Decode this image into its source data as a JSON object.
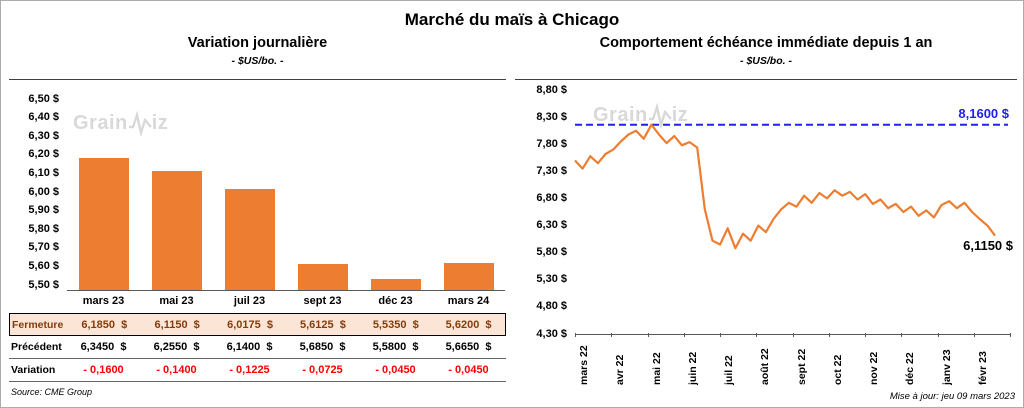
{
  "page": {
    "title": "Marché du maïs à Chicago",
    "source": "Source: CME Group",
    "updated": "Mise à jour: jeu 09 mars 2023",
    "watermark_prefix": "Grain",
    "watermark_suffix": "iz"
  },
  "colors": {
    "series_orange": "#ED7D31",
    "ref_blue": "#2020EE",
    "negative_red": "#FF0000",
    "highlight_bg": "#FBE5D6",
    "highlight_text": "#843C0C",
    "axis_line": "#404040",
    "watermark_gray": "#D9D9D9"
  },
  "chart_data": [
    {
      "type": "bar",
      "title": "Variation journalière",
      "subtitle": "- $US/bo. -",
      "categories": [
        "mars 23",
        "mai 23",
        "juil 23",
        "sept 23",
        "déc 23",
        "mars 24"
      ],
      "values": [
        6.185,
        6.115,
        6.0175,
        5.6125,
        5.535,
        5.62
      ],
      "bar_color": "#ED7D31",
      "ylim": [
        5.47,
        6.5
      ],
      "yticks": [
        {
          "value": 6.5,
          "label": "6,50 $"
        },
        {
          "value": 6.4,
          "label": "6,40 $"
        },
        {
          "value": 6.3,
          "label": "6,30 $"
        },
        {
          "value": 6.2,
          "label": "6,20 $"
        },
        {
          "value": 6.1,
          "label": "6,10 $"
        },
        {
          "value": 6.0,
          "label": "6,00 $"
        },
        {
          "value": 5.9,
          "label": "5,90 $"
        },
        {
          "value": 5.8,
          "label": "5,80 $"
        },
        {
          "value": 5.7,
          "label": "5,70 $"
        },
        {
          "value": 5.6,
          "label": "5,60 $"
        },
        {
          "value": 5.5,
          "label": "5,50 $"
        }
      ],
      "table": {
        "rows": [
          {
            "label": "Fermeture",
            "style": "highlight",
            "values": [
              "6,1850  $",
              "6,1150  $",
              "6,0175  $",
              "5,6125  $",
              "5,5350  $",
              "5,6200  $"
            ]
          },
          {
            "label": "Précédent",
            "style": "normal",
            "values": [
              "6,3450  $",
              "6,2550  $",
              "6,1400  $",
              "5,6850  $",
              "5,5800  $",
              "5,6650  $"
            ]
          },
          {
            "label": "Variation",
            "style": "negative",
            "values": [
              "- 0,1600",
              "- 0,1400",
              "- 0,1225",
              "- 0,0725",
              "- 0,0450",
              "- 0,0450"
            ]
          }
        ]
      }
    },
    {
      "type": "line",
      "title": "Comportement échéance immédiate depuis 1 an",
      "subtitle": "- $US/bo. -",
      "x_labels": [
        "mars 22",
        "avr 22",
        "mai 22",
        "juin 22",
        "juil 22",
        "août 22",
        "sept 22",
        "oct 22",
        "nov 22",
        "déc 22",
        "janv 23",
        "févr 23"
      ],
      "ylim": [
        4.3,
        8.8
      ],
      "yticks": [
        {
          "value": 8.8,
          "label": "8,80 $"
        },
        {
          "value": 8.3,
          "label": "8,30 $"
        },
        {
          "value": 7.8,
          "label": "7,80 $"
        },
        {
          "value": 7.3,
          "label": "7,30 $"
        },
        {
          "value": 6.8,
          "label": "6,80 $"
        },
        {
          "value": 6.3,
          "label": "6,30 $"
        },
        {
          "value": 5.8,
          "label": "5,80 $"
        },
        {
          "value": 5.3,
          "label": "5,30 $"
        },
        {
          "value": 4.8,
          "label": "4,80 $"
        },
        {
          "value": 4.3,
          "label": "4,30 $"
        }
      ],
      "series": [
        {
          "name": "échéance immédiate",
          "color": "#ED7D31",
          "values": [
            7.5,
            7.35,
            7.58,
            7.45,
            7.62,
            7.7,
            7.85,
            7.98,
            8.05,
            7.9,
            8.16,
            7.98,
            7.82,
            7.95,
            7.78,
            7.84,
            7.74,
            6.6,
            6.02,
            5.95,
            6.25,
            5.88,
            6.15,
            6.02,
            6.3,
            6.18,
            6.42,
            6.6,
            6.72,
            6.65,
            6.85,
            6.72,
            6.9,
            6.8,
            6.95,
            6.85,
            6.92,
            6.78,
            6.88,
            6.7,
            6.78,
            6.62,
            6.7,
            6.55,
            6.65,
            6.48,
            6.58,
            6.45,
            6.68,
            6.75,
            6.62,
            6.72,
            6.55,
            6.42,
            6.3,
            6.115
          ]
        }
      ],
      "ref_line": {
        "value": 8.16,
        "label": "8,1600 $",
        "color": "#2020EE",
        "style": "dashed"
      },
      "end_label": {
        "value": 6.115,
        "label": "6,1150 $"
      }
    }
  ]
}
